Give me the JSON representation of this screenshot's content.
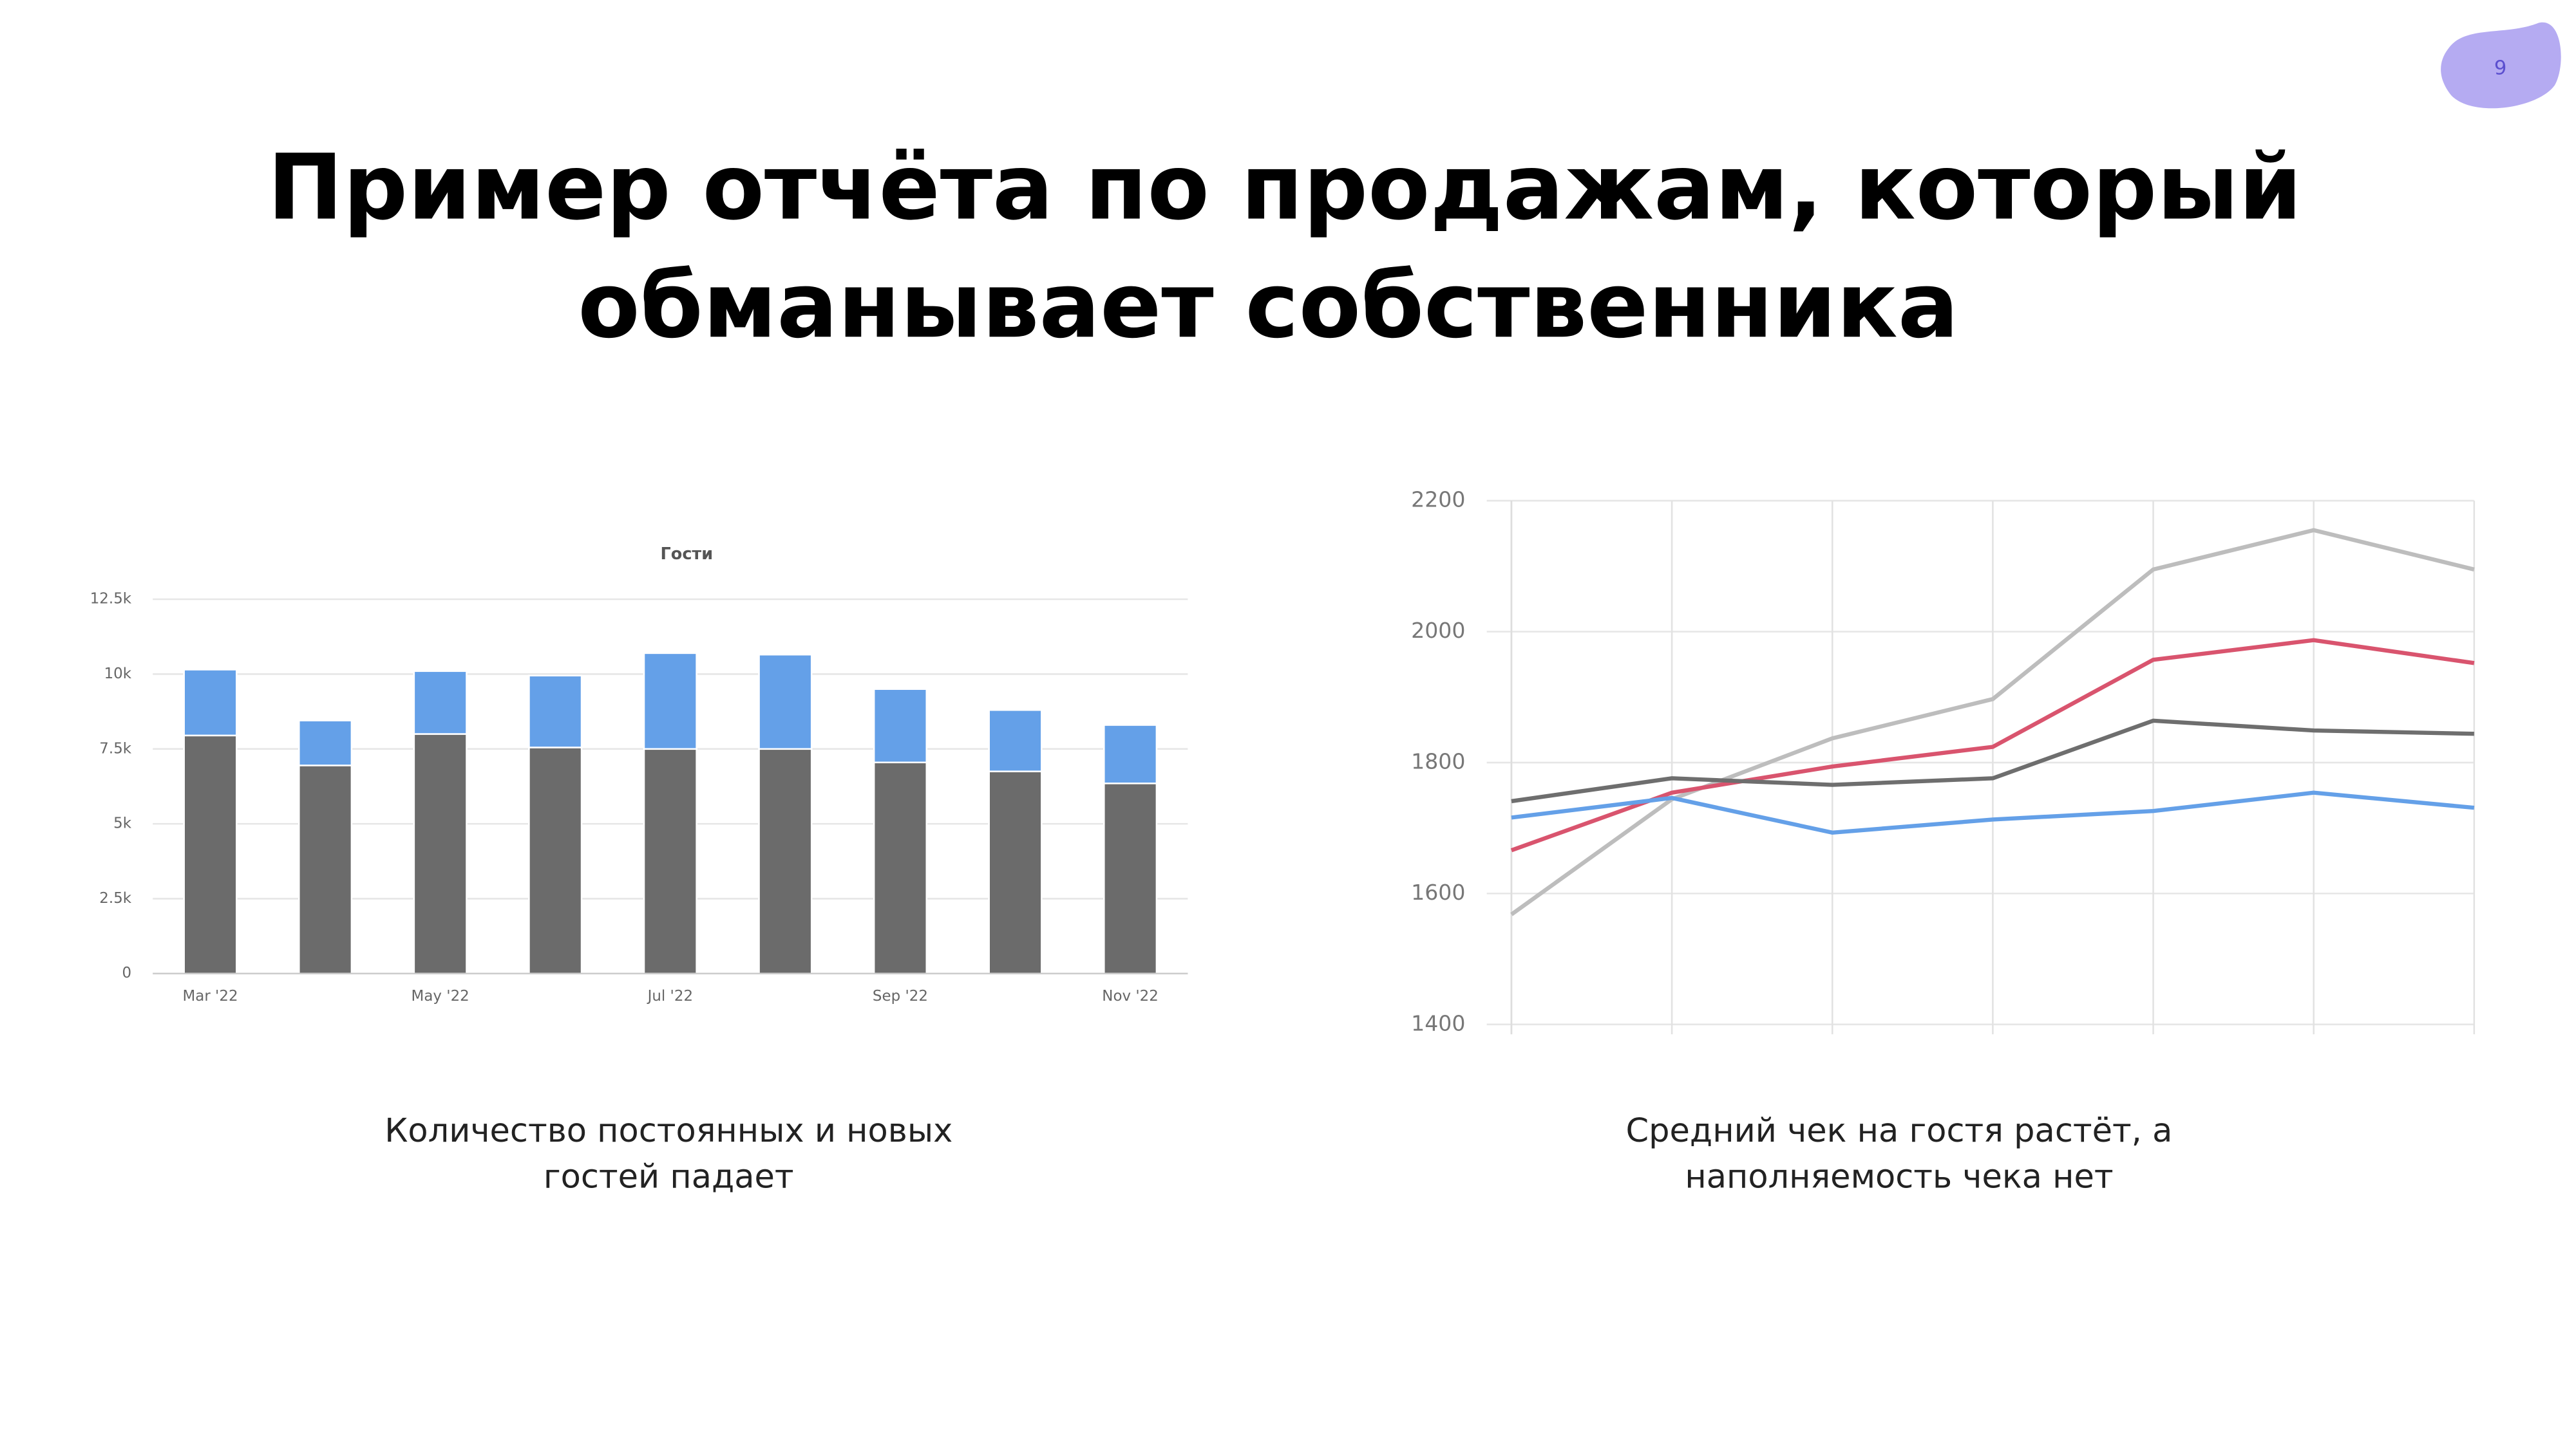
{
  "page_number": "9",
  "title_lines": [
    "Пример отчёта по продажам, который",
    "обманывает собственника"
  ],
  "chart_data": [
    {
      "type": "stacked_bar",
      "title": "Гости",
      "categories": [
        "Mar '22",
        null,
        "May '22",
        null,
        "Jul '22",
        null,
        "Sep '22",
        null,
        "Nov '22"
      ],
      "series": [
        {
          "color": "#6b6b6b",
          "values": [
            7950,
            6950,
            8000,
            7550,
            7500,
            7500,
            7050,
            6750,
            6350
          ]
        },
        {
          "color": "#64a0e8",
          "values": [
            2200,
            1500,
            2100,
            2400,
            3200,
            3150,
            2450,
            2050,
            1950
          ]
        }
      ],
      "ylim": [
        0,
        12500
      ],
      "yticks": [
        0,
        {
          "value": 2500,
          "label": "2.5k"
        },
        {
          "value": 5000,
          "label": "5k"
        },
        {
          "value": 7500,
          "label": "7.5k"
        },
        {
          "value": 10000,
          "label": "10k"
        },
        {
          "value": 12500,
          "label": "12.5k"
        }
      ],
      "grid": true
    },
    {
      "type": "line",
      "categories": [
        null,
        null,
        null,
        null,
        null,
        null,
        null
      ],
      "series": [
        {
          "color": "#bdbdbd",
          "values": [
            1568,
            1744,
            1837,
            1897,
            2095,
            2155,
            2095
          ]
        },
        {
          "color": "#d9546e",
          "values": [
            1666,
            1754,
            1794,
            1824,
            1957,
            1987,
            1952
          ]
        },
        {
          "color": "#6e6e6e",
          "values": [
            1741,
            1776,
            1766,
            1776,
            1864,
            1849,
            1844
          ]
        },
        {
          "color": "#64a0e8",
          "values": [
            1716,
            1746,
            1693,
            1713,
            1726,
            1754,
            1731
          ]
        }
      ],
      "ylim": [
        1400,
        2200
      ],
      "yticks": [
        1400,
        1600,
        1800,
        2000,
        2200
      ],
      "grid": true
    }
  ],
  "captions": [
    [
      "Количество постоянных и новых",
      "гостей падает"
    ],
    [
      "Средний чек на гостя растёт, а",
      "наполняемость чека нет"
    ]
  ]
}
